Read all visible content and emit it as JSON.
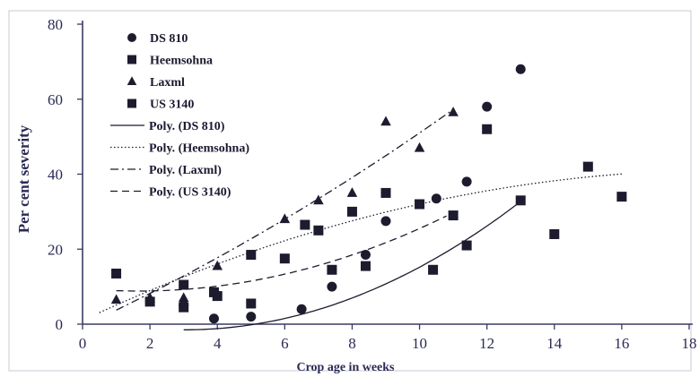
{
  "chart_data": {
    "type": "scatter",
    "title": "",
    "xlabel": "Crop age in  weeks",
    "ylabel": "Per cent severity",
    "xlim": [
      0,
      18
    ],
    "ylim": [
      0,
      80
    ],
    "x_ticks": [
      "0",
      "2",
      "4",
      "6",
      "8",
      "10",
      "12",
      "14",
      "16",
      "18"
    ],
    "y_ticks": [
      "0",
      "20",
      "40",
      "60",
      "80"
    ],
    "grid": false,
    "legend_position": "top-left",
    "series": [
      {
        "name": "DS 810",
        "marker": "circle",
        "points": [
          [
            3,
            5
          ],
          [
            3.9,
            1.5
          ],
          [
            5,
            2
          ],
          [
            6.5,
            4
          ],
          [
            7.4,
            10
          ],
          [
            8.4,
            18.5
          ],
          [
            9,
            27.5
          ],
          [
            10.5,
            33.5
          ],
          [
            11.4,
            38
          ],
          [
            12,
            58
          ],
          [
            13,
            68
          ]
        ]
      },
      {
        "name": "Heemsohna",
        "marker": "square",
        "points": [
          [
            1,
            13.5
          ],
          [
            2,
            6
          ],
          [
            3,
            10.5
          ],
          [
            3.9,
            8.5
          ],
          [
            5,
            18.5
          ],
          [
            6.6,
            26.5
          ],
          [
            7,
            25
          ],
          [
            8,
            30
          ],
          [
            9,
            35
          ],
          [
            10,
            32
          ],
          [
            11,
            29
          ],
          [
            12,
            52
          ],
          [
            13,
            33
          ],
          [
            15,
            42
          ],
          [
            16,
            34
          ]
        ]
      },
      {
        "name": "Laxml",
        "marker": "triangle",
        "points": [
          [
            1,
            6.5
          ],
          [
            2,
            7
          ],
          [
            3,
            7
          ],
          [
            4,
            15.5
          ],
          [
            6,
            28
          ],
          [
            7,
            33
          ],
          [
            8,
            35
          ],
          [
            9,
            54
          ],
          [
            10,
            47
          ],
          [
            11,
            56.5
          ]
        ]
      },
      {
        "name": "US 3140",
        "marker": "square",
        "points": [
          [
            3,
            4.5
          ],
          [
            4,
            7.5
          ],
          [
            5,
            5.5
          ],
          [
            6,
            17.5
          ],
          [
            7.4,
            14.5
          ],
          [
            8.4,
            15.5
          ],
          [
            10.4,
            14.5
          ],
          [
            11.4,
            21
          ],
          [
            14,
            24
          ]
        ]
      }
    ],
    "trendlines": [
      {
        "name": "Poly. (DS 810)",
        "style": "solid",
        "coeffs": [
          1.7,
          -2.1,
          0.345
        ],
        "x_range": [
          3,
          13
        ]
      },
      {
        "name": "Poly. (Heemsohna)",
        "style": "dotted",
        "coeffs": [
          1.0,
          4.2,
          -0.11
        ],
        "x_range": [
          0.5,
          16
        ]
      },
      {
        "name": "Poly. (Laxml)",
        "style": "dash-dot",
        "coeffs": [
          -0.5,
          4.15,
          0.1
        ],
        "x_range": [
          1,
          11
        ]
      },
      {
        "name": "Poly. (US 3140)",
        "style": "dashed",
        "coeffs": [
          9.5,
          -0.8,
          0.24
        ],
        "x_range": [
          1,
          10.8
        ]
      }
    ]
  }
}
